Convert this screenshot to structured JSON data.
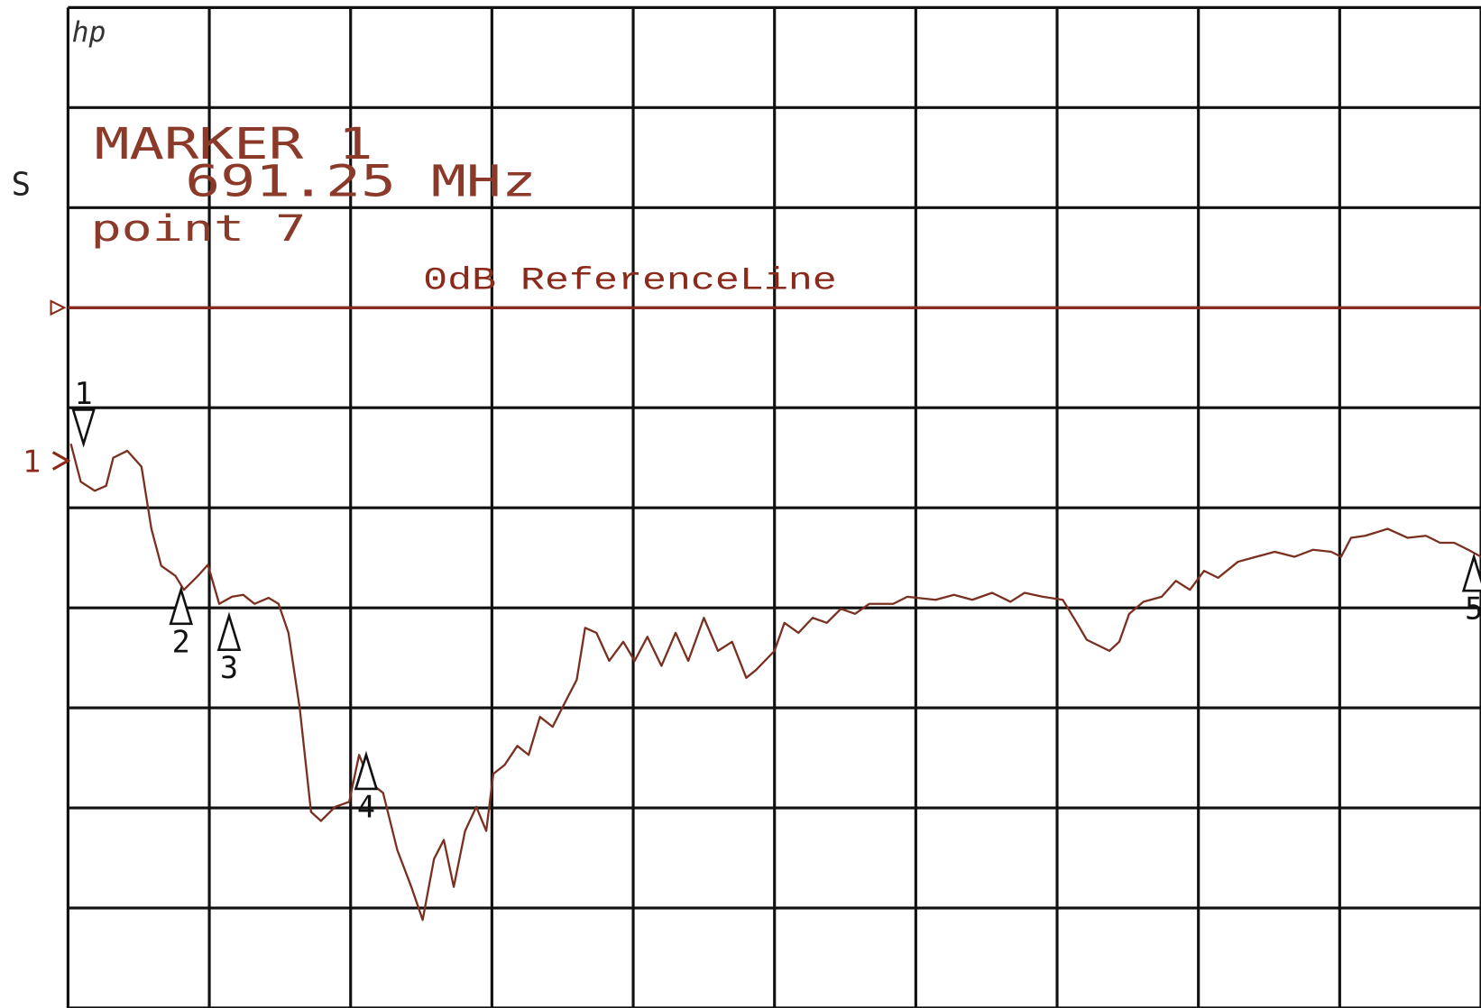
{
  "chart_data": {
    "type": "line",
    "logo": "hp",
    "channel_label": "S",
    "marker_readout": [
      "MARKER 1",
      "691.25 MHz",
      "point 7"
    ],
    "reference": {
      "value": 7,
      "label": "0dB ReferenceLine",
      "color": "#8b2a1a"
    },
    "channel_ref": {
      "value": 5.47,
      "label": "1",
      "color": "#8b2a1a"
    },
    "xlim": [
      0,
      10
    ],
    "ylim": [
      0,
      10
    ],
    "xticks": [
      0,
      1,
      2,
      3,
      4,
      5,
      6,
      7,
      8,
      9,
      10
    ],
    "yticks": [
      0,
      1,
      2,
      3,
      4,
      5,
      6,
      7,
      8,
      9,
      10
    ],
    "grid": true,
    "x": [
      0.02,
      0.09,
      0.19,
      0.27,
      0.32,
      0.42,
      0.52,
      0.59,
      0.66,
      0.76,
      0.82,
      0.92,
      0.99,
      1.07,
      1.16,
      1.24,
      1.32,
      1.42,
      1.49,
      1.56,
      1.64,
      1.72,
      1.79,
      1.89,
      1.99,
      2.06,
      2.14,
      2.23,
      2.33,
      2.43,
      2.51,
      2.59,
      2.66,
      2.73,
      2.81,
      2.89,
      2.96,
      3.01,
      3.09,
      3.18,
      3.26,
      3.34,
      3.43,
      3.53,
      3.6,
      3.66,
      3.74,
      3.83,
      3.93,
      4.01,
      4.1,
      4.2,
      4.3,
      4.39,
      4.5,
      4.6,
      4.7,
      4.8,
      4.87,
      5.0,
      5.07,
      5.17,
      5.27,
      5.37,
      5.47,
      5.57,
      5.67,
      5.84,
      5.94,
      6.14,
      6.27,
      6.4,
      6.54,
      6.67,
      6.77,
      6.9,
      7.04,
      7.14,
      7.21,
      7.37,
      7.44,
      7.51,
      7.61,
      7.74,
      7.84,
      7.94,
      8.04,
      8.14,
      8.28,
      8.41,
      8.54,
      8.68,
      8.81,
      8.94,
      9.01,
      9.08,
      9.18,
      9.34,
      9.48,
      9.61,
      9.71,
      9.81,
      9.91,
      10.0
    ],
    "series": [
      {
        "color": "#7a3020",
        "values": [
          5.64,
          5.26,
          5.17,
          5.22,
          5.5,
          5.57,
          5.41,
          4.79,
          4.42,
          4.32,
          4.18,
          4.32,
          4.43,
          4.04,
          4.11,
          4.13,
          4.04,
          4.1,
          4.04,
          3.75,
          3.0,
          1.96,
          1.87,
          2.01,
          2.06,
          2.53,
          2.25,
          2.15,
          1.58,
          1.21,
          0.88,
          1.49,
          1.68,
          1.21,
          1.77,
          2.01,
          1.77,
          2.34,
          2.43,
          2.62,
          2.53,
          2.91,
          2.81,
          3.09,
          3.28,
          3.8,
          3.75,
          3.47,
          3.66,
          3.47,
          3.71,
          3.42,
          3.75,
          3.47,
          3.9,
          3.57,
          3.66,
          3.3,
          3.38,
          3.57,
          3.85,
          3.75,
          3.9,
          3.85,
          3.99,
          3.94,
          4.04,
          4.04,
          4.11,
          4.08,
          4.13,
          4.08,
          4.15,
          4.06,
          4.15,
          4.11,
          4.08,
          3.85,
          3.68,
          3.57,
          3.66,
          3.94,
          4.06,
          4.11,
          4.27,
          4.18,
          4.37,
          4.3,
          4.46,
          4.51,
          4.56,
          4.51,
          4.58,
          4.56,
          4.51,
          4.7,
          4.72,
          4.79,
          4.7,
          4.72,
          4.65,
          4.65,
          4.58,
          4.51
        ]
      }
    ],
    "markers": [
      {
        "label": "1",
        "x": 0.11,
        "y": 5.64,
        "direction": "down"
      },
      {
        "label": "2",
        "x": 0.8,
        "y": 4.18,
        "direction": "up"
      },
      {
        "label": "3",
        "x": 1.14,
        "y": 3.92,
        "direction": "up"
      },
      {
        "label": "4",
        "x": 2.11,
        "y": 2.53,
        "direction": "up"
      },
      {
        "label": "5",
        "x": 9.95,
        "y": 4.51,
        "direction": "up"
      }
    ]
  }
}
